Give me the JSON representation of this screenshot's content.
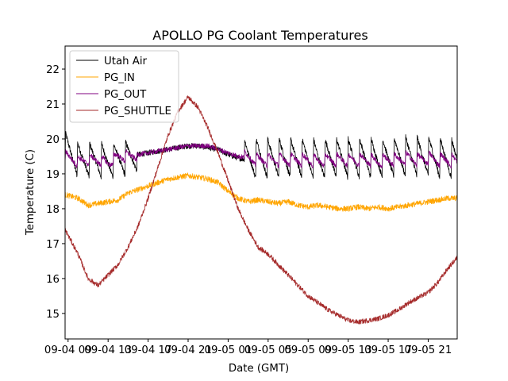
{
  "chart_data": {
    "type": "line",
    "title": "APOLLO PG Coolant Temperatures",
    "xlabel": "Date (GMT)",
    "ylabel": "Temperature (C)",
    "x_units": "hours since 09-04 00:00 GMT",
    "xlim": [
      8.7,
      47.9
    ],
    "ylim": [
      14.27,
      22.66
    ],
    "grid": false,
    "legend_position": "top-left",
    "x_ticks": [
      {
        "value": 9,
        "label": "09-04 09"
      },
      {
        "value": 13,
        "label": "09-04 13"
      },
      {
        "value": 17,
        "label": "09-04 17"
      },
      {
        "value": 21,
        "label": "09-04 21"
      },
      {
        "value": 25,
        "label": "09-05 01"
      },
      {
        "value": 29,
        "label": "09-05 05"
      },
      {
        "value": 33,
        "label": "09-05 09"
      },
      {
        "value": 37,
        "label": "09-05 13"
      },
      {
        "value": 41,
        "label": "09-05 17"
      },
      {
        "value": 45,
        "label": "09-05 21"
      }
    ],
    "y_ticks": [
      {
        "value": 15,
        "label": "15"
      },
      {
        "value": 16,
        "label": "16"
      },
      {
        "value": 17,
        "label": "17"
      },
      {
        "value": 18,
        "label": "18"
      },
      {
        "value": 19,
        "label": "19"
      },
      {
        "value": 20,
        "label": "20"
      },
      {
        "value": 21,
        "label": "21"
      },
      {
        "value": 22,
        "label": "22"
      }
    ],
    "series": [
      {
        "name": "Utah Air",
        "color": "#000000",
        "x": [
          8.7,
          10,
          11,
          12,
          13,
          14,
          15,
          16,
          17,
          18,
          19,
          20,
          21,
          22,
          23,
          24,
          25,
          26,
          27,
          28,
          29,
          30,
          31,
          32,
          33,
          34,
          35,
          36,
          37,
          38,
          39,
          40,
          41,
          42,
          43,
          44,
          45,
          46,
          47,
          47.9
        ],
        "y": [
          19.7,
          19.4,
          19.4,
          19.4,
          19.35,
          19.4,
          19.45,
          19.55,
          19.6,
          19.65,
          19.7,
          19.75,
          19.8,
          19.8,
          19.75,
          19.7,
          19.55,
          19.45,
          19.4,
          19.45,
          19.45,
          19.45,
          19.45,
          19.45,
          19.45,
          19.4,
          19.45,
          19.45,
          19.45,
          19.45,
          19.45,
          19.45,
          19.45,
          19.5,
          19.5,
          19.5,
          19.5,
          19.45,
          19.45,
          19.4
        ],
        "sawtooth": [
          {
            "from": 8.7,
            "to": 15.9,
            "period": 1.2,
            "amplitude": 0.95
          },
          {
            "from": 26.6,
            "to": 47.9,
            "period": 1.15,
            "amplitude": 1.1
          }
        ],
        "noise": 0.08
      },
      {
        "name": "PG_IN",
        "color": "#ffa500",
        "x": [
          8.7,
          10,
          11,
          12,
          13,
          14,
          15,
          16,
          17,
          18,
          19,
          20,
          21,
          22,
          23,
          24,
          25,
          26,
          27,
          28,
          29,
          30,
          31,
          32,
          33,
          34,
          35,
          36,
          37,
          38,
          39,
          40,
          41,
          42,
          43,
          44,
          45,
          46,
          47,
          47.9
        ],
        "y": [
          18.4,
          18.3,
          18.1,
          18.15,
          18.2,
          18.25,
          18.45,
          18.55,
          18.65,
          18.75,
          18.85,
          18.9,
          18.95,
          18.9,
          18.85,
          18.75,
          18.5,
          18.3,
          18.2,
          18.25,
          18.2,
          18.15,
          18.2,
          18.1,
          18.05,
          18.1,
          18.05,
          18.0,
          18.0,
          18.05,
          18.0,
          18.05,
          18.0,
          18.05,
          18.1,
          18.15,
          18.2,
          18.25,
          18.3,
          18.3
        ],
        "noise": 0.08
      },
      {
        "name": "PG_OUT",
        "color": "#800080",
        "x": [
          8.7,
          10,
          11,
          12,
          13,
          14,
          15,
          16,
          17,
          18,
          19,
          20,
          21,
          22,
          23,
          24,
          25,
          26,
          27,
          28,
          29,
          30,
          31,
          32,
          33,
          34,
          35,
          36,
          37,
          38,
          39,
          40,
          41,
          42,
          43,
          44,
          45,
          46,
          47,
          47.9
        ],
        "y": [
          19.5,
          19.35,
          19.4,
          19.4,
          19.3,
          19.5,
          19.5,
          19.55,
          19.6,
          19.65,
          19.7,
          19.75,
          19.8,
          19.8,
          19.8,
          19.7,
          19.6,
          19.5,
          19.45,
          19.4,
          19.4,
          19.4,
          19.4,
          19.4,
          19.4,
          19.35,
          19.4,
          19.4,
          19.4,
          19.4,
          19.4,
          19.35,
          19.4,
          19.4,
          19.45,
          19.4,
          19.45,
          19.4,
          19.4,
          19.35
        ],
        "sawtooth": [
          {
            "from": 8.7,
            "to": 15.9,
            "period": 1.2,
            "amplitude": 0.3
          },
          {
            "from": 26.6,
            "to": 47.9,
            "period": 1.15,
            "amplitude": 0.35
          }
        ],
        "noise": 0.07
      },
      {
        "name": "PG_SHUTTLE",
        "color": "#a52a2a",
        "x": [
          8.7,
          10,
          11,
          12,
          13,
          14,
          15,
          16,
          17,
          18,
          19,
          20,
          21,
          22,
          23,
          24,
          25,
          26,
          27,
          28,
          29,
          30,
          31,
          32,
          33,
          34,
          35,
          36,
          37,
          38,
          39,
          40,
          41,
          42,
          43,
          44,
          45,
          46,
          47,
          47.9
        ],
        "y": [
          17.4,
          16.7,
          16.0,
          15.8,
          16.1,
          16.4,
          16.9,
          17.5,
          18.3,
          19.2,
          20.1,
          20.8,
          21.2,
          20.9,
          20.3,
          19.6,
          18.8,
          18.0,
          17.4,
          16.9,
          16.7,
          16.4,
          16.1,
          15.8,
          15.5,
          15.3,
          15.1,
          14.95,
          14.8,
          14.75,
          14.8,
          14.85,
          14.95,
          15.1,
          15.3,
          15.45,
          15.6,
          15.9,
          16.3,
          16.6
        ],
        "noise": 0.07
      }
    ]
  }
}
